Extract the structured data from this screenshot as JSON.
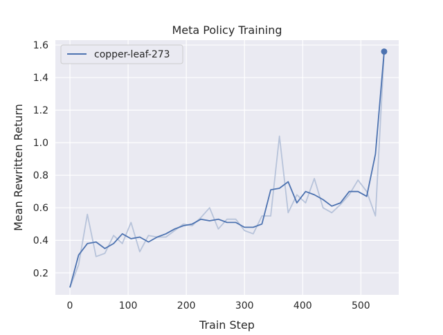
{
  "chart_data": {
    "type": "line",
    "title": "Meta Policy Training",
    "xlabel": "Train Step",
    "ylabel": "Mean Rewritten Return",
    "xlim": [
      -25,
      565
    ],
    "ylim": [
      0.065,
      1.63
    ],
    "xticks": [
      0,
      100,
      200,
      300,
      400,
      500
    ],
    "yticks": [
      0.2,
      0.4,
      0.6,
      0.8,
      1.0,
      1.2,
      1.4,
      1.6
    ],
    "ytick_labels": [
      "0.2",
      "0.4",
      "0.6",
      "0.8",
      "1.0",
      "1.2",
      "1.4",
      "1.6"
    ],
    "grid": true,
    "legend_position": "top-left",
    "colors": {
      "line": "#4c72b0",
      "raw": "#b7c3da",
      "background": "#eaeaf2",
      "grid": "#ffffff"
    },
    "series": [
      {
        "name": "copper-leaf-273",
        "kind": "smoothed",
        "x": [
          0,
          15,
          30,
          45,
          60,
          75,
          90,
          105,
          120,
          135,
          150,
          165,
          180,
          195,
          210,
          225,
          240,
          255,
          270,
          285,
          300,
          315,
          330,
          345,
          360,
          375,
          390,
          405,
          420,
          435,
          450,
          465,
          480,
          495,
          510,
          525,
          540
        ],
        "values": [
          0.11,
          0.31,
          0.38,
          0.39,
          0.35,
          0.38,
          0.44,
          0.41,
          0.42,
          0.39,
          0.42,
          0.44,
          0.47,
          0.49,
          0.5,
          0.53,
          0.52,
          0.53,
          0.51,
          0.51,
          0.48,
          0.48,
          0.5,
          0.71,
          0.72,
          0.76,
          0.63,
          0.7,
          0.68,
          0.65,
          0.61,
          0.63,
          0.7,
          0.7,
          0.67,
          0.93,
          1.56
        ]
      },
      {
        "kind": "raw",
        "x": [
          0,
          15,
          30,
          45,
          60,
          75,
          90,
          105,
          120,
          135,
          150,
          165,
          180,
          195,
          210,
          225,
          240,
          255,
          270,
          285,
          300,
          315,
          330,
          345,
          360,
          375,
          390,
          405,
          420,
          435,
          450,
          465,
          480,
          495,
          510,
          525,
          540
        ],
        "values": [
          0.11,
          0.25,
          0.56,
          0.3,
          0.32,
          0.43,
          0.38,
          0.51,
          0.33,
          0.43,
          0.42,
          0.42,
          0.46,
          0.5,
          0.49,
          0.54,
          0.6,
          0.47,
          0.53,
          0.53,
          0.46,
          0.44,
          0.55,
          0.55,
          1.04,
          0.57,
          0.68,
          0.63,
          0.78,
          0.6,
          0.57,
          0.62,
          0.68,
          0.77,
          0.7,
          0.55,
          1.56
        ]
      }
    ]
  }
}
